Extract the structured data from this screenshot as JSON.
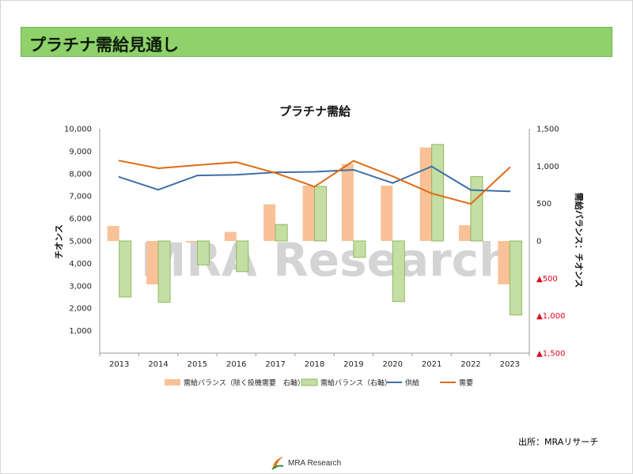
{
  "page": {
    "title": "プラチナ需給見通し",
    "source_note": "出所：MRAリサーチ"
  },
  "watermark": "MRA Research",
  "logo": {
    "text": "MRA Research",
    "icon": "leaf-swoosh-icon"
  },
  "colors": {
    "title_bar": "#8fd16b",
    "bar_excl_investment": "#f9c197",
    "bar_balance": "#c5dea3",
    "line_supply": "#3e6fa6",
    "line_demand": "#de6b16",
    "negative_tick": "#e0001a"
  },
  "chart_data": {
    "type": "bar",
    "title": "プラチナ需給",
    "ylabel": "チオンス",
    "y2label": "需給バランス：チオンス",
    "categories": [
      "2013",
      "2014",
      "2015",
      "2016",
      "2017",
      "2018",
      "2019",
      "2020",
      "2021",
      "2022",
      "2023"
    ],
    "ylim": [
      0,
      10000
    ],
    "y2lim": [
      -1500,
      1500
    ],
    "y_ticks": [
      "1,000",
      "2,000",
      "3,000",
      "4,000",
      "5,000",
      "6,000",
      "7,000",
      "8,000",
      "9,000",
      "10,000"
    ],
    "y2_ticks": [
      "▲1,500",
      "▲1,000",
      "▲500",
      "0",
      "500",
      "1,000",
      "1,500"
    ],
    "series": [
      {
        "name": "需給バランス（除く投機需要　右軸）",
        "kind": "bar",
        "axis": "right",
        "values": [
          200,
          -580,
          -20,
          120,
          490,
          740,
          1030,
          740,
          1250,
          210,
          -580
        ]
      },
      {
        "name": "需給バランス（右軸）",
        "kind": "bar",
        "axis": "right",
        "values": [
          -750,
          -820,
          -320,
          -410,
          220,
          730,
          -220,
          -810,
          1290,
          860,
          -990
        ]
      },
      {
        "name": "供給",
        "kind": "line",
        "axis": "left",
        "values": [
          7850,
          7280,
          7920,
          7950,
          8060,
          8080,
          8170,
          7580,
          8320,
          7270,
          7210
        ]
      },
      {
        "name": "需要",
        "kind": "line",
        "axis": "left",
        "values": [
          8580,
          8240,
          8380,
          8510,
          8030,
          7420,
          8570,
          7880,
          7120,
          6650,
          8280
        ]
      }
    ],
    "legend": "bottom"
  }
}
